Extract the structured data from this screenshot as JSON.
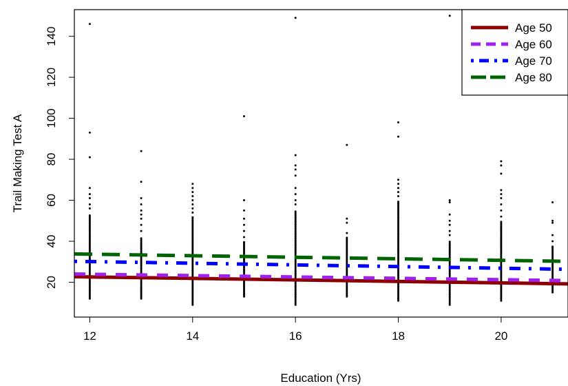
{
  "chart_data": {
    "type": "scatter",
    "xlabel": "Education (Yrs)",
    "ylabel": "Trail Making Test A",
    "xlim": [
      11.7,
      21.3
    ],
    "ylim": [
      3,
      153
    ],
    "x_ticks": [
      "12",
      "14",
      "16",
      "18",
      "20"
    ],
    "y_ticks": [
      "20",
      "40",
      "60",
      "80",
      "100",
      "120",
      "140"
    ],
    "grid": false,
    "legend_position": "top-right",
    "points": [
      {
        "x": 12,
        "lo": 12,
        "hi": 53,
        "outliers": [
          56,
          58,
          61,
          63,
          66,
          81,
          93,
          146
        ]
      },
      {
        "x": 13,
        "lo": 12,
        "hi": 42,
        "outliers": [
          45,
          48,
          51,
          53,
          55,
          58,
          61,
          69,
          84
        ]
      },
      {
        "x": 14,
        "lo": 9,
        "hi": 52,
        "outliers": [
          54,
          56,
          58,
          60,
          62,
          64,
          66,
          68
        ]
      },
      {
        "x": 15,
        "lo": 13,
        "hi": 40,
        "outliers": [
          42,
          45,
          48,
          51,
          55,
          60,
          101
        ]
      },
      {
        "x": 16,
        "lo": 9,
        "hi": 55,
        "outliers": [
          58,
          60,
          63,
          66,
          72,
          75,
          77,
          82,
          149
        ]
      },
      {
        "x": 17,
        "lo": 13,
        "hi": 42,
        "outliers": [
          44,
          49,
          51,
          87
        ]
      },
      {
        "x": 18,
        "lo": 11,
        "hi": 60,
        "outliers": [
          62,
          64,
          66,
          68,
          70,
          91,
          98
        ]
      },
      {
        "x": 19,
        "lo": 9,
        "hi": 40,
        "outliers": [
          43,
          45,
          48,
          50,
          53,
          59,
          60,
          150
        ]
      },
      {
        "x": 20,
        "lo": 11,
        "hi": 50,
        "outliers": [
          52,
          55,
          58,
          61,
          63,
          65,
          73,
          77,
          79
        ]
      },
      {
        "x": 21,
        "lo": 15,
        "hi": 38,
        "outliers": [
          40,
          43,
          49,
          50,
          59
        ]
      }
    ],
    "series": [
      {
        "name": "Age 50",
        "color": "#8B0000",
        "style": "solid",
        "x": [
          11.7,
          21.3
        ],
        "y": [
          22.7,
          19.2
        ]
      },
      {
        "name": "Age 60",
        "color": "#A020F0",
        "style": "dashed",
        "x": [
          11.7,
          21.3
        ],
        "y": [
          24.0,
          20.8
        ]
      },
      {
        "name": "Age 70",
        "color": "#0000FF",
        "style": "dotdash",
        "x": [
          11.7,
          21.3
        ],
        "y": [
          30.2,
          26.3
        ]
      },
      {
        "name": "Age 80",
        "color": "#006400",
        "style": "longdash",
        "x": [
          11.7,
          21.3
        ],
        "y": [
          33.8,
          30.2
        ]
      }
    ]
  }
}
